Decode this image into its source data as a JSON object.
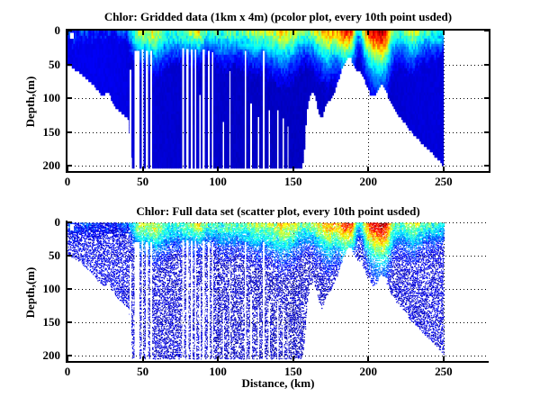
{
  "figure": {
    "background": "#ffffff",
    "frame_color": "#000000",
    "grid_color": "#000000",
    "grid_style": "dotted"
  },
  "chart_data": {
    "colormap": "jet",
    "shared_field": {
      "description": "Chlorophyll section vs distance (km) and depth (m); white = no data (seafloor / missing profiles)",
      "surface_value_by_km": [
        [
          0,
          0.17
        ],
        [
          6,
          0.16
        ],
        [
          12,
          0.15
        ],
        [
          18,
          0.14
        ],
        [
          24,
          0.15
        ],
        [
          30,
          0.14
        ],
        [
          36,
          0.16
        ],
        [
          40,
          0.22
        ],
        [
          43,
          0.38
        ],
        [
          46,
          0.55
        ],
        [
          49,
          0.62
        ],
        [
          52,
          0.55
        ],
        [
          55,
          0.6
        ],
        [
          58,
          0.64
        ],
        [
          61,
          0.55
        ],
        [
          64,
          0.48
        ],
        [
          67,
          0.45
        ],
        [
          70,
          0.44
        ],
        [
          73,
          0.46
        ],
        [
          76,
          0.48
        ],
        [
          79,
          0.5
        ],
        [
          82,
          0.54
        ],
        [
          85,
          0.6
        ],
        [
          88,
          0.63
        ],
        [
          91,
          0.5
        ],
        [
          94,
          0.44
        ],
        [
          98,
          0.44
        ],
        [
          102,
          0.46
        ],
        [
          106,
          0.48
        ],
        [
          110,
          0.46
        ],
        [
          114,
          0.47
        ],
        [
          118,
          0.5
        ],
        [
          122,
          0.54
        ],
        [
          126,
          0.58
        ],
        [
          130,
          0.54
        ],
        [
          134,
          0.56
        ],
        [
          138,
          0.6
        ],
        [
          142,
          0.66
        ],
        [
          146,
          0.65
        ],
        [
          150,
          0.61
        ],
        [
          154,
          0.52
        ],
        [
          158,
          0.48
        ],
        [
          162,
          0.52
        ],
        [
          166,
          0.6
        ],
        [
          170,
          0.68
        ],
        [
          173,
          0.76
        ],
        [
          176,
          0.7
        ],
        [
          179,
          0.68
        ],
        [
          182,
          0.8
        ],
        [
          185,
          0.87
        ],
        [
          188,
          0.84
        ],
        [
          191,
          0.6
        ],
        [
          194,
          0.3
        ],
        [
          197,
          0.6
        ],
        [
          200,
          0.82
        ],
        [
          203,
          0.9
        ],
        [
          206,
          0.94
        ],
        [
          209,
          0.95
        ],
        [
          212,
          0.88
        ],
        [
          215,
          0.6
        ],
        [
          218,
          0.44
        ],
        [
          221,
          0.46
        ],
        [
          224,
          0.5
        ],
        [
          227,
          0.56
        ],
        [
          230,
          0.6
        ],
        [
          233,
          0.54
        ],
        [
          236,
          0.48
        ],
        [
          240,
          0.44
        ],
        [
          244,
          0.46
        ],
        [
          248,
          0.42
        ],
        [
          250,
          0.4
        ]
      ],
      "surface_layer_depth_m": [
        [
          0,
          26
        ],
        [
          10,
          22
        ],
        [
          20,
          18
        ],
        [
          30,
          16
        ],
        [
          40,
          18
        ],
        [
          46,
          26
        ],
        [
          52,
          28
        ],
        [
          58,
          30
        ],
        [
          64,
          28
        ],
        [
          70,
          25
        ],
        [
          76,
          24
        ],
        [
          82,
          24
        ],
        [
          88,
          23
        ],
        [
          94,
          20
        ],
        [
          100,
          25
        ],
        [
          106,
          27
        ],
        [
          112,
          24
        ],
        [
          118,
          26
        ],
        [
          124,
          28
        ],
        [
          130,
          27
        ],
        [
          136,
          30
        ],
        [
          142,
          33
        ],
        [
          148,
          31
        ],
        [
          154,
          25
        ],
        [
          160,
          23
        ],
        [
          166,
          28
        ],
        [
          172,
          34
        ],
        [
          178,
          30
        ],
        [
          184,
          32
        ],
        [
          190,
          28
        ],
        [
          194,
          18
        ],
        [
          198,
          30
        ],
        [
          202,
          36
        ],
        [
          206,
          40
        ],
        [
          210,
          40
        ],
        [
          214,
          34
        ],
        [
          218,
          26
        ],
        [
          222,
          25
        ],
        [
          226,
          27
        ],
        [
          230,
          28
        ],
        [
          234,
          25
        ],
        [
          238,
          23
        ],
        [
          242,
          23
        ],
        [
          246,
          22
        ],
        [
          250,
          20
        ]
      ],
      "deep_value_by_km": [
        [
          0,
          0.105
        ],
        [
          20,
          0.11
        ],
        [
          38,
          0.1
        ],
        [
          44,
          0.085
        ],
        [
          60,
          0.082
        ],
        [
          90,
          0.078
        ],
        [
          110,
          0.07
        ],
        [
          150,
          0.065
        ],
        [
          168,
          0.07
        ],
        [
          185,
          0.075
        ],
        [
          200,
          0.075
        ],
        [
          215,
          0.08
        ],
        [
          230,
          0.088
        ],
        [
          250,
          0.092
        ]
      ],
      "bathymetry_km_depth": [
        [
          0,
          48
        ],
        [
          5,
          56
        ],
        [
          10,
          64
        ],
        [
          15,
          74
        ],
        [
          20,
          86
        ],
        [
          24,
          96
        ],
        [
          27,
          88
        ],
        [
          30,
          104
        ],
        [
          33,
          114
        ],
        [
          36,
          120
        ],
        [
          39,
          126
        ],
        [
          41,
          130
        ],
        [
          43,
          204
        ],
        [
          150,
          204
        ],
        [
          155,
          204
        ],
        [
          157,
          190
        ],
        [
          159,
          120
        ],
        [
          161,
          96
        ],
        [
          163,
          88
        ],
        [
          165,
          98
        ],
        [
          167,
          118
        ],
        [
          169,
          128
        ],
        [
          171,
          114
        ],
        [
          174,
          102
        ],
        [
          177,
          92
        ],
        [
          180,
          72
        ],
        [
          183,
          52
        ],
        [
          186,
          38
        ],
        [
          188,
          36
        ],
        [
          190,
          48
        ],
        [
          192,
          58
        ],
        [
          194,
          56
        ],
        [
          196,
          64
        ],
        [
          199,
          80
        ],
        [
          202,
          96
        ],
        [
          205,
          92
        ],
        [
          208,
          78
        ],
        [
          211,
          82
        ],
        [
          214,
          102
        ],
        [
          218,
          118
        ],
        [
          222,
          128
        ],
        [
          226,
          140
        ],
        [
          230,
          152
        ],
        [
          234,
          161
        ],
        [
          238,
          170
        ],
        [
          242,
          178
        ],
        [
          246,
          188
        ],
        [
          249,
          196
        ],
        [
          250,
          198
        ]
      ],
      "data_gaps_x0_x1_topdepth": [
        [
          41.2,
          42.6,
          58
        ],
        [
          44.5,
          47.8,
          30
        ],
        [
          49.3,
          50.6,
          28
        ],
        [
          52.2,
          53.4,
          30
        ],
        [
          55.1,
          56.2,
          30
        ],
        [
          76.2,
          77.6,
          26
        ],
        [
          79.1,
          80.4,
          27
        ],
        [
          81.9,
          83.2,
          28
        ],
        [
          84.6,
          85.6,
          28
        ],
        [
          87.5,
          88.4,
          95
        ],
        [
          89.6,
          91.2,
          28
        ],
        [
          93.2,
          94.6,
          30
        ],
        [
          96.1,
          97.0,
          32
        ],
        [
          103.2,
          104.2,
          135
        ],
        [
          107.6,
          108.4,
          60
        ],
        [
          117.8,
          118.9,
          30
        ],
        [
          121.6,
          122.6,
          108
        ],
        [
          126.4,
          127.3,
          128
        ],
        [
          129.8,
          130.9,
          30
        ],
        [
          133.6,
          134.5,
          118
        ],
        [
          139.4,
          140.4,
          118
        ],
        [
          143.0,
          144.0,
          130
        ],
        [
          146.2,
          147.0,
          142
        ]
      ],
      "holes": [
        [
          1.8,
          3,
          2.4,
          9
        ]
      ]
    },
    "plots": [
      {
        "type": "heatmap",
        "title": "Chlor: Gridded data (1km x 4m) (pcolor plot, every 10th point usded)",
        "xlabel": "",
        "ylabel": "Depth,(m)",
        "xlim": [
          0,
          280
        ],
        "ylim": [
          0,
          208
        ],
        "y_inverted": true,
        "xticks": [
          0,
          50,
          100,
          150,
          200,
          250
        ],
        "yticks": [
          0,
          50,
          100,
          150,
          200
        ],
        "box": true,
        "grid": "dotted",
        "data_extent_km": [
          0,
          250
        ],
        "depth_extent_m": [
          0,
          200
        ]
      },
      {
        "type": "scatter",
        "title": "Chlor: Full data set (scatter plot, every 10th point usded)",
        "xlabel": "Distance, (km)",
        "ylabel": "Depth,(m)",
        "xlim": [
          0,
          280
        ],
        "ylim": [
          0,
          208
        ],
        "y_inverted": true,
        "xticks": [
          0,
          50,
          100,
          150,
          200,
          250
        ],
        "yticks": [
          0,
          50,
          100,
          150,
          200
        ],
        "box": false,
        "grid": "dotted",
        "data_extent_km": [
          0,
          250
        ],
        "depth_extent_m": [
          0,
          200
        ]
      }
    ]
  }
}
